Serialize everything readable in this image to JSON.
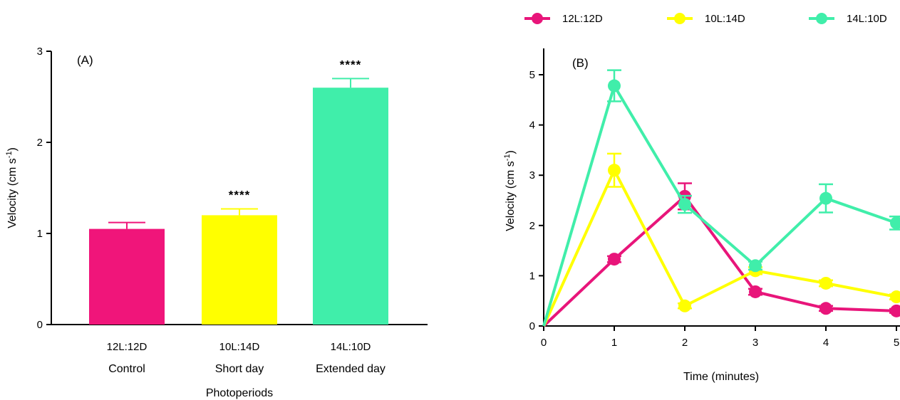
{
  "chart_data": [
    {
      "type": "bar",
      "panel_label": "(A)",
      "categories": [
        "12L:12D",
        "10L:14D",
        "14L:10D"
      ],
      "category_sublabels": [
        "Control",
        "Short day",
        "Extended day"
      ],
      "values": [
        1.05,
        1.2,
        2.6
      ],
      "errors": [
        0.07,
        0.07,
        0.1
      ],
      "significance": [
        "",
        "****",
        "****"
      ],
      "colors": [
        "#F0157A",
        "#FFFF00",
        "#40EEAA"
      ],
      "xlabel": "Photoperiods",
      "ylabel": "Velocity (cm s",
      "ylabel_superscript": "-1",
      "ylabel_suffix": ")",
      "ylim": [
        0,
        3
      ],
      "yticks": [
        "0",
        "1",
        "2",
        "3"
      ],
      "grid": false
    },
    {
      "type": "line",
      "panel_label": "(B)",
      "x": [
        0,
        1,
        2,
        3,
        4,
        5
      ],
      "xticks": [
        "0",
        "1",
        "2",
        "3",
        "4",
        "5"
      ],
      "series": [
        {
          "name": "12L:12D",
          "color": "#E8157A",
          "values": [
            0,
            1.33,
            2.58,
            0.68,
            0.35,
            0.3
          ],
          "errors": [
            0,
            0.06,
            0.26,
            0.06,
            0.05,
            0.04
          ]
        },
        {
          "name": "10L:14D",
          "color": "#FFFF00",
          "values": [
            0,
            3.1,
            0.4,
            1.1,
            0.85,
            0.58
          ],
          "errors": [
            0,
            0.33,
            0.05,
            0.07,
            0.06,
            0.05
          ]
        },
        {
          "name": "14L:10D",
          "color": "#40EEAA",
          "values": [
            0,
            4.78,
            2.42,
            1.2,
            2.54,
            2.05
          ],
          "errors": [
            0,
            0.31,
            0.17,
            0.08,
            0.28,
            0.13
          ]
        }
      ],
      "xlabel": "Time (minutes)",
      "ylabel": "Velocity (cm s",
      "ylabel_superscript": "-1",
      "ylabel_suffix": ")",
      "ylim": [
        0,
        5.5
      ],
      "yticks": [
        "0",
        "1",
        "2",
        "3",
        "4",
        "5"
      ],
      "xlim": [
        0,
        5
      ],
      "legend_placement": "top",
      "grid": false
    }
  ]
}
